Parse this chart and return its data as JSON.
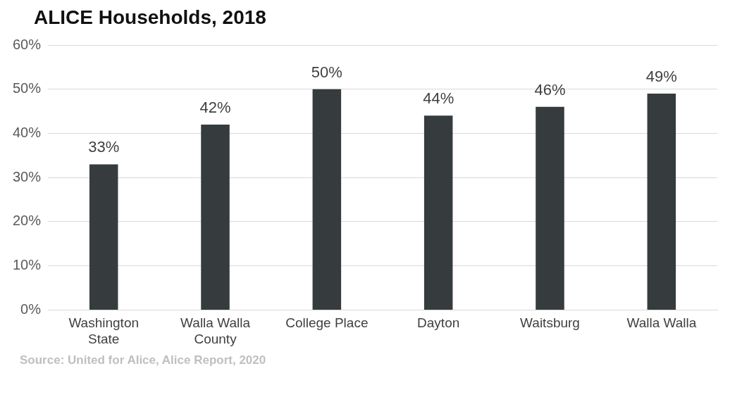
{
  "chart_data": {
    "type": "bar",
    "title": "ALICE Households, 2018",
    "categories": [
      "Washington State",
      "Walla Walla County",
      "College Place",
      "Dayton",
      "Waitsburg",
      "Walla Walla"
    ],
    "values": [
      33,
      42,
      50,
      44,
      46,
      49
    ],
    "color": "#363b3e",
    "ylim": [
      0,
      60
    ],
    "yticks": [
      {
        "value": 0,
        "label": "0%"
      },
      {
        "value": 10,
        "label": "10%"
      },
      {
        "value": 20,
        "label": "20%"
      },
      {
        "value": 30,
        "label": "30%"
      },
      {
        "value": 40,
        "label": "40%"
      },
      {
        "value": 50,
        "label": "50%"
      },
      {
        "value": 60,
        "label": "60%"
      }
    ],
    "value_labels": [
      "33%",
      "42%",
      "50%",
      "44%",
      "46%",
      "49%"
    ],
    "grid": "y",
    "legend": false,
    "annotations": [
      "Source: United for Alice, Alice Report, 2020"
    ]
  }
}
